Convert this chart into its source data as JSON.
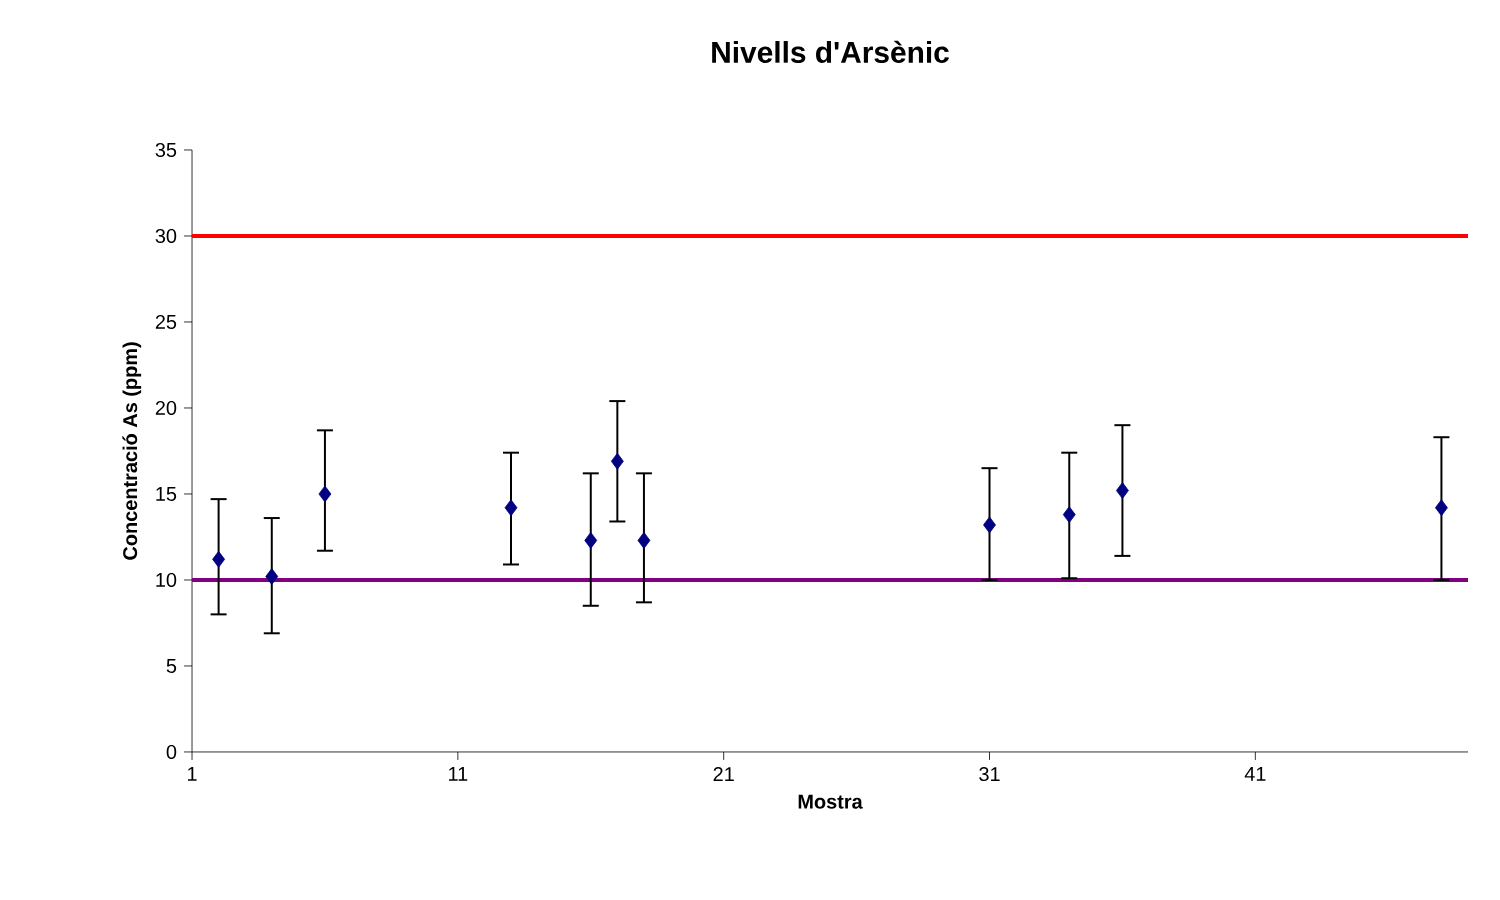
{
  "chart_data": {
    "type": "scatter",
    "title": "Nivells d'Arsènic",
    "xlabel": "Mostra",
    "ylabel": "Concentració As (ppm)",
    "x": [
      2,
      4,
      6,
      13,
      16,
      17,
      18,
      31,
      34,
      36,
      48
    ],
    "series": [
      {
        "color": "#000080",
        "values": [
          11.2,
          10.2,
          15.0,
          14.2,
          12.3,
          16.9,
          12.3,
          13.2,
          13.8,
          15.2,
          14.2
        ],
        "errors": [
          [
            8.0,
            14.7
          ],
          [
            6.9,
            13.6
          ],
          [
            11.7,
            18.7
          ],
          [
            10.9,
            17.4
          ],
          [
            8.5,
            16.2
          ],
          [
            13.4,
            20.4
          ],
          [
            8.7,
            16.2
          ],
          [
            10.0,
            16.5
          ],
          [
            10.1,
            17.4
          ],
          [
            11.4,
            19.0
          ],
          [
            10.0,
            18.3
          ]
        ]
      }
    ],
    "xlim": [
      1,
      49
    ],
    "xticks": [
      1,
      11,
      21,
      31,
      41
    ],
    "ylim": [
      0,
      35
    ],
    "yticks": [
      0,
      5,
      10,
      15,
      20,
      25,
      30,
      35
    ],
    "marker": "diamond",
    "ref_lines": [
      {
        "axis": "y",
        "value": 30,
        "color": "#ff0000"
      },
      {
        "axis": "y",
        "value": 10,
        "color": "#800080"
      }
    ]
  }
}
